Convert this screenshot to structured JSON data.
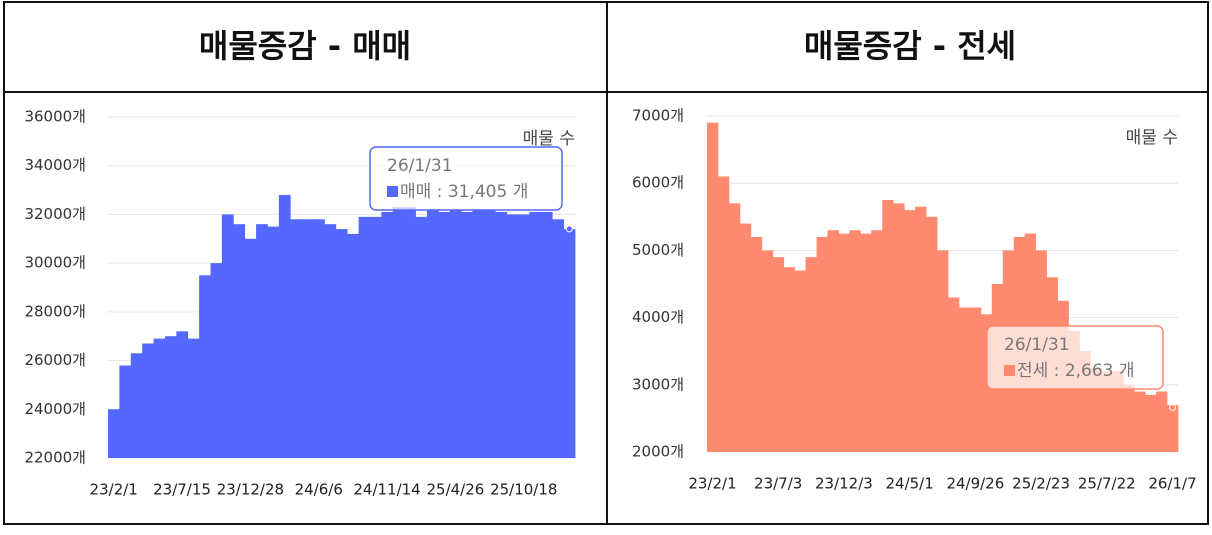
{
  "chart_data": [
    {
      "type": "bar",
      "title": "매물증감 - 매매",
      "categories": [
        "23/2/1",
        null,
        null,
        null,
        null,
        null,
        "23/7/15",
        null,
        null,
        null,
        null,
        null,
        "23/12/28",
        null,
        null,
        null,
        null,
        null,
        "24/6/6",
        null,
        null,
        null,
        null,
        null,
        "24/11/14",
        null,
        null,
        null,
        null,
        null,
        "25/4/26",
        null,
        null,
        null,
        null,
        null,
        "25/10/18",
        null,
        null,
        null,
        null
      ],
      "series": [
        {
          "name": "매물 수",
          "color": "#5468ff",
          "values": [
            24000,
            25800,
            26300,
            26700,
            26900,
            27000,
            27200,
            26900,
            29500,
            30000,
            32000,
            31600,
            31000,
            31600,
            31500,
            32800,
            31800,
            31800,
            31800,
            31600,
            31400,
            31200,
            31900,
            31900,
            32100,
            32300,
            32300,
            31900,
            32200,
            32100,
            32200,
            32100,
            32200,
            32200,
            32100,
            32000,
            32000,
            32100,
            32100,
            31800,
            31400
          ]
        }
      ],
      "ylim": [
        22000,
        36000
      ],
      "yticks": [
        {
          "value": 22000,
          "label": "22000개"
        },
        {
          "value": 24000,
          "label": "24000개"
        },
        {
          "value": 26000,
          "label": "26000개"
        },
        {
          "value": 28000,
          "label": "28000개"
        },
        {
          "value": 30000,
          "label": "30000개"
        },
        {
          "value": 32000,
          "label": "32000개"
        },
        {
          "value": 34000,
          "label": "34000개"
        },
        {
          "value": 36000,
          "label": "36000개"
        }
      ],
      "grid": true,
      "tooltip": {
        "date": "26/1/31",
        "text": "매매 : 31,405 개",
        "value": 31405
      }
    },
    {
      "type": "bar",
      "title": "매물증감 - 전세",
      "categories": [
        "23/2/1",
        null,
        null,
        null,
        null,
        null,
        "23/7/3",
        null,
        null,
        null,
        null,
        null,
        "23/12/3",
        null,
        null,
        null,
        null,
        null,
        "24/5/1",
        null,
        null,
        null,
        null,
        null,
        "24/9/26",
        null,
        null,
        null,
        null,
        null,
        "25/2/23",
        null,
        null,
        null,
        null,
        null,
        "25/7/22",
        null,
        null,
        null,
        null,
        null,
        "26/1/7"
      ],
      "series": [
        {
          "name": "매물 수",
          "color": "#ff8a70",
          "values": [
            6900,
            6100,
            5700,
            5400,
            5200,
            5000,
            4900,
            4750,
            4700,
            4900,
            5200,
            5300,
            5250,
            5300,
            5250,
            5300,
            5750,
            5700,
            5600,
            5650,
            5500,
            5000,
            4300,
            4150,
            4150,
            4050,
            4500,
            5000,
            5200,
            5250,
            5000,
            4600,
            4250,
            3800,
            3500,
            3250,
            3200,
            3200,
            3000,
            2900,
            2850,
            2900,
            2700
          ]
        }
      ],
      "ylim": [
        2000,
        7000
      ],
      "yticks": [
        {
          "value": 2000,
          "label": "2000개"
        },
        {
          "value": 3000,
          "label": "3000개"
        },
        {
          "value": 4000,
          "label": "4000개"
        },
        {
          "value": 5000,
          "label": "5000개"
        },
        {
          "value": 6000,
          "label": "6000개"
        },
        {
          "value": 7000,
          "label": "7000개"
        }
      ],
      "grid": true,
      "tooltip": {
        "date": "26/1/31",
        "text": "전세 : 2,663 개",
        "value": 2663
      }
    }
  ]
}
